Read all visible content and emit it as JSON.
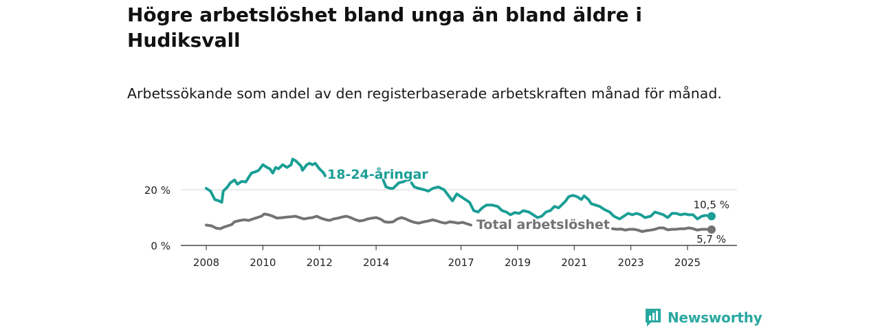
{
  "title": "Högre arbetslöshet bland unga än bland äldre i Hudiksvall",
  "subtitle": "Arbetssökande som andel av den registerbaserade arbetskraften månad för månad.",
  "logo_text": "Newsworthy",
  "colors": {
    "youth": "#1a9e95",
    "total": "#737373",
    "grid": "#d6d6d6",
    "axis": "#222222",
    "brand": "#2aa8a0"
  },
  "chart_data": {
    "type": "line",
    "title": "Högre arbetslöshet bland unga än bland äldre i Hudiksvall",
    "subtitle": "Arbetssökande som andel av den registerbaserade arbetskraften månad för månad.",
    "xlabel": "",
    "ylabel": "",
    "xlim": [
      2008,
      2026.8
    ],
    "ylim": [
      0,
      30
    ],
    "y_ticks": [
      {
        "value": 0,
        "label": "0 %"
      },
      {
        "value": 20,
        "label": "20 %"
      }
    ],
    "x_ticks": [
      {
        "value": 2008,
        "label": "2008"
      },
      {
        "value": 2010,
        "label": "2010"
      },
      {
        "value": 2012,
        "label": "2012"
      },
      {
        "value": 2014,
        "label": "2014"
      },
      {
        "value": 2017,
        "label": "2017"
      },
      {
        "value": 2019,
        "label": "2019"
      },
      {
        "value": 2021,
        "label": "2021"
      },
      {
        "value": 2023,
        "label": "2023"
      },
      {
        "value": 2025,
        "label": "2025"
      }
    ],
    "grid": true,
    "series": [
      {
        "name": "18-24-åringar",
        "label": "18-24-åringar",
        "end_label": "10,5 %",
        "points": [
          [
            2008.0,
            20.5
          ],
          [
            2008.15,
            19.5
          ],
          [
            2008.3,
            16.5
          ],
          [
            2008.45,
            16.0
          ],
          [
            2008.55,
            15.5
          ],
          [
            2008.6,
            19.5
          ],
          [
            2008.75,
            21.0
          ],
          [
            2008.85,
            22.5
          ],
          [
            2009.0,
            23.5
          ],
          [
            2009.1,
            22.0
          ],
          [
            2009.25,
            23.0
          ],
          [
            2009.4,
            22.8
          ],
          [
            2009.5,
            24.5
          ],
          [
            2009.6,
            26.0
          ],
          [
            2009.75,
            26.5
          ],
          [
            2009.85,
            27.0
          ],
          [
            2010.0,
            29.0
          ],
          [
            2010.15,
            28.0
          ],
          [
            2010.25,
            27.5
          ],
          [
            2010.35,
            26.0
          ],
          [
            2010.45,
            28.0
          ],
          [
            2010.55,
            27.5
          ],
          [
            2010.7,
            29.0
          ],
          [
            2010.85,
            28.0
          ],
          [
            2011.0,
            29.0
          ],
          [
            2011.05,
            31.0
          ],
          [
            2011.15,
            30.5
          ],
          [
            2011.25,
            29.5
          ],
          [
            2011.35,
            28.5
          ],
          [
            2011.4,
            27.0
          ],
          [
            2011.55,
            29.0
          ],
          [
            2011.65,
            29.5
          ],
          [
            2011.75,
            29.0
          ],
          [
            2011.85,
            29.5
          ],
          [
            2012.0,
            27.5
          ],
          [
            2012.15,
            26.0
          ],
          [
            2012.2,
            25.0
          ]
        ],
        "points2": [
          [
            2014.25,
            23.5
          ],
          [
            2014.35,
            21.0
          ],
          [
            2014.5,
            20.5
          ],
          [
            2014.6,
            20.5
          ],
          [
            2014.8,
            22.5
          ],
          [
            2015.0,
            23.0
          ]
        ],
        "points3": [
          [
            2015.25,
            22.5
          ],
          [
            2015.35,
            21.0
          ],
          [
            2015.5,
            20.5
          ],
          [
            2015.7,
            20.0
          ],
          [
            2015.85,
            19.5
          ],
          [
            2016.0,
            20.5
          ],
          [
            2016.2,
            21.0
          ],
          [
            2016.4,
            20.0
          ],
          [
            2016.55,
            18.0
          ],
          [
            2016.7,
            16.0
          ],
          [
            2016.85,
            18.5
          ],
          [
            2017.0,
            17.5
          ],
          [
            2017.15,
            16.5
          ],
          [
            2017.3,
            15.5
          ],
          [
            2017.45,
            12.5
          ],
          [
            2017.6,
            12.0
          ],
          [
            2017.75,
            13.5
          ],
          [
            2017.9,
            14.5
          ],
          [
            2018.1,
            14.5
          ],
          [
            2018.3,
            14.0
          ],
          [
            2018.45,
            12.5
          ],
          [
            2018.6,
            12.0
          ],
          [
            2018.75,
            11.0
          ],
          [
            2018.9,
            11.8
          ],
          [
            2019.05,
            11.5
          ],
          [
            2019.2,
            12.5
          ],
          [
            2019.4,
            12.0
          ],
          [
            2019.55,
            11.0
          ],
          [
            2019.7,
            10.0
          ],
          [
            2019.85,
            10.5
          ],
          [
            2020.0,
            12.0
          ],
          [
            2020.15,
            12.5
          ],
          [
            2020.3,
            14.0
          ],
          [
            2020.45,
            13.5
          ],
          [
            2020.6,
            15.0
          ],
          [
            2020.7,
            16.0
          ],
          [
            2020.8,
            17.5
          ],
          [
            2020.95,
            18.0
          ],
          [
            2021.1,
            17.5
          ],
          [
            2021.25,
            16.5
          ],
          [
            2021.35,
            17.8
          ],
          [
            2021.5,
            16.5
          ],
          [
            2021.6,
            15.0
          ],
          [
            2021.75,
            14.5
          ],
          [
            2021.9,
            14.0
          ],
          [
            2022.05,
            13.0
          ],
          [
            2022.25,
            12.0
          ],
          [
            2022.4,
            10.5
          ],
          [
            2022.6,
            9.5
          ],
          [
            2022.75,
            10.5
          ],
          [
            2022.9,
            11.5
          ],
          [
            2023.05,
            11.0
          ],
          [
            2023.2,
            11.5
          ],
          [
            2023.35,
            11.0
          ],
          [
            2023.5,
            10.0
          ],
          [
            2023.7,
            10.5
          ],
          [
            2023.85,
            12.0
          ],
          [
            2024.0,
            11.5
          ],
          [
            2024.15,
            11.0
          ],
          [
            2024.3,
            10.0
          ],
          [
            2024.45,
            11.5
          ],
          [
            2024.6,
            11.5
          ],
          [
            2024.75,
            11.0
          ],
          [
            2024.9,
            11.3
          ],
          [
            2025.05,
            11.0
          ],
          [
            2025.2,
            11.0
          ],
          [
            2025.35,
            9.5
          ],
          [
            2025.5,
            10.5
          ],
          [
            2025.65,
            10.8
          ],
          [
            2025.85,
            10.5
          ]
        ]
      },
      {
        "name": "Total arbetslöshet",
        "label": "Total arbetslöshet",
        "end_label": "5,7 %",
        "points": [
          [
            2008.0,
            7.3
          ],
          [
            2008.2,
            7.0
          ],
          [
            2008.35,
            6.2
          ],
          [
            2008.5,
            6.0
          ],
          [
            2008.6,
            6.5
          ],
          [
            2008.75,
            7.0
          ],
          [
            2008.9,
            7.5
          ],
          [
            2009.0,
            8.5
          ],
          [
            2009.2,
            9.0
          ],
          [
            2009.35,
            9.2
          ],
          [
            2009.5,
            9.0
          ],
          [
            2009.65,
            9.5
          ],
          [
            2009.8,
            10.0
          ],
          [
            2009.95,
            10.5
          ],
          [
            2010.05,
            11.3
          ],
          [
            2010.2,
            11.0
          ],
          [
            2010.35,
            10.5
          ],
          [
            2010.5,
            9.8
          ],
          [
            2010.7,
            10.0
          ],
          [
            2010.85,
            10.2
          ],
          [
            2011.0,
            10.3
          ],
          [
            2011.15,
            10.5
          ],
          [
            2011.3,
            10.0
          ],
          [
            2011.45,
            9.5
          ],
          [
            2011.6,
            9.8
          ],
          [
            2011.75,
            10.0
          ],
          [
            2011.9,
            10.5
          ],
          [
            2012.05,
            9.8
          ],
          [
            2012.2,
            9.3
          ],
          [
            2012.35,
            9.0
          ],
          [
            2012.5,
            9.5
          ],
          [
            2012.65,
            9.8
          ],
          [
            2012.8,
            10.2
          ],
          [
            2012.95,
            10.5
          ],
          [
            2013.1,
            10.0
          ],
          [
            2013.25,
            9.3
          ],
          [
            2013.4,
            8.8
          ],
          [
            2013.55,
            9.0
          ],
          [
            2013.7,
            9.5
          ],
          [
            2013.85,
            9.8
          ],
          [
            2014.0,
            10.0
          ],
          [
            2014.15,
            9.5
          ],
          [
            2014.3,
            8.5
          ],
          [
            2014.45,
            8.3
          ],
          [
            2014.6,
            8.5
          ],
          [
            2014.75,
            9.5
          ],
          [
            2014.9,
            10.0
          ],
          [
            2015.05,
            9.5
          ],
          [
            2015.2,
            8.8
          ],
          [
            2015.35,
            8.3
          ],
          [
            2015.5,
            8.0
          ],
          [
            2015.7,
            8.5
          ],
          [
            2015.85,
            8.8
          ],
          [
            2016.0,
            9.2
          ],
          [
            2016.15,
            8.8
          ],
          [
            2016.3,
            8.3
          ],
          [
            2016.45,
            8.0
          ],
          [
            2016.6,
            8.5
          ],
          [
            2016.75,
            8.3
          ],
          [
            2016.9,
            8.0
          ],
          [
            2017.05,
            8.3
          ],
          [
            2017.2,
            7.8
          ],
          [
            2017.35,
            7.3
          ]
        ],
        "points2": [
          [
            2022.35,
            6.0
          ],
          [
            2022.5,
            5.8
          ],
          [
            2022.65,
            5.9
          ],
          [
            2022.8,
            5.5
          ],
          [
            2022.95,
            5.8
          ],
          [
            2023.1,
            5.8
          ],
          [
            2023.25,
            5.5
          ],
          [
            2023.4,
            5.0
          ],
          [
            2023.55,
            5.3
          ],
          [
            2023.7,
            5.5
          ],
          [
            2023.85,
            5.8
          ],
          [
            2024.0,
            6.3
          ],
          [
            2024.15,
            6.3
          ],
          [
            2024.3,
            5.6
          ],
          [
            2024.45,
            5.8
          ],
          [
            2024.6,
            5.8
          ],
          [
            2024.75,
            6.0
          ],
          [
            2024.9,
            6.0
          ],
          [
            2025.05,
            6.3
          ],
          [
            2025.2,
            6.0
          ],
          [
            2025.35,
            5.5
          ],
          [
            2025.5,
            5.8
          ],
          [
            2025.65,
            5.8
          ],
          [
            2025.85,
            5.7
          ]
        ]
      }
    ]
  }
}
